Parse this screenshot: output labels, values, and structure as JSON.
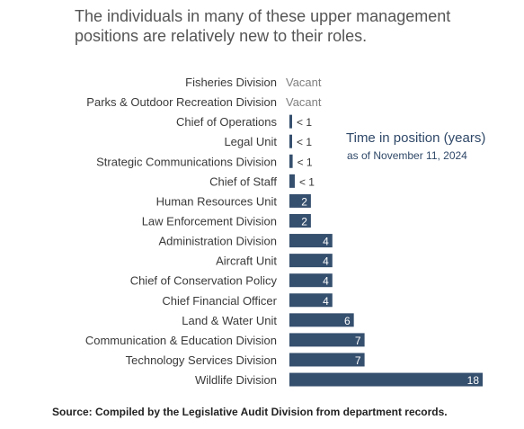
{
  "title": "The individuals in many of these upper management positions are relatively new to their roles.",
  "legend": {
    "title": "Time in position (years)",
    "subtitle": "as of November 11, 2024"
  },
  "source": "Source: Compiled by the Legislative Audit Division from department records.",
  "colors": {
    "bar": "#354f6e",
    "bar_label_inside": "#ffffff",
    "bar_label_outside": "#333333",
    "category_text": "#3a3a3a",
    "vacant_text": "#7f7f7f"
  },
  "chart_data": {
    "type": "bar",
    "orientation": "horizontal",
    "categories": [
      "Fisheries Division",
      "Parks & Outdoor Recreation Division",
      "Chief of Operations",
      "Legal Unit",
      "Strategic Communications Division",
      "Chief of Staff",
      "Human Resources Unit",
      "Law Enforcement Division",
      "Administration Division",
      "Aircraft Unit",
      "Chief of Conservation Policy",
      "Chief Financial Officer",
      "Land & Water Unit",
      "Communication & Education Division",
      "Technology Services Division",
      "Wildlife Division"
    ],
    "values": [
      null,
      null,
      0.1,
      0.1,
      0.3,
      0.5,
      2,
      2,
      4,
      4,
      4,
      4,
      6,
      7,
      7,
      18
    ],
    "labels": [
      "Vacant",
      "Vacant",
      "< 1",
      "< 1",
      "< 1",
      "< 1",
      "2",
      "2",
      "4",
      "4",
      "4",
      "4",
      "6",
      "7",
      "7",
      "18"
    ],
    "xlim": [
      0,
      18
    ]
  }
}
